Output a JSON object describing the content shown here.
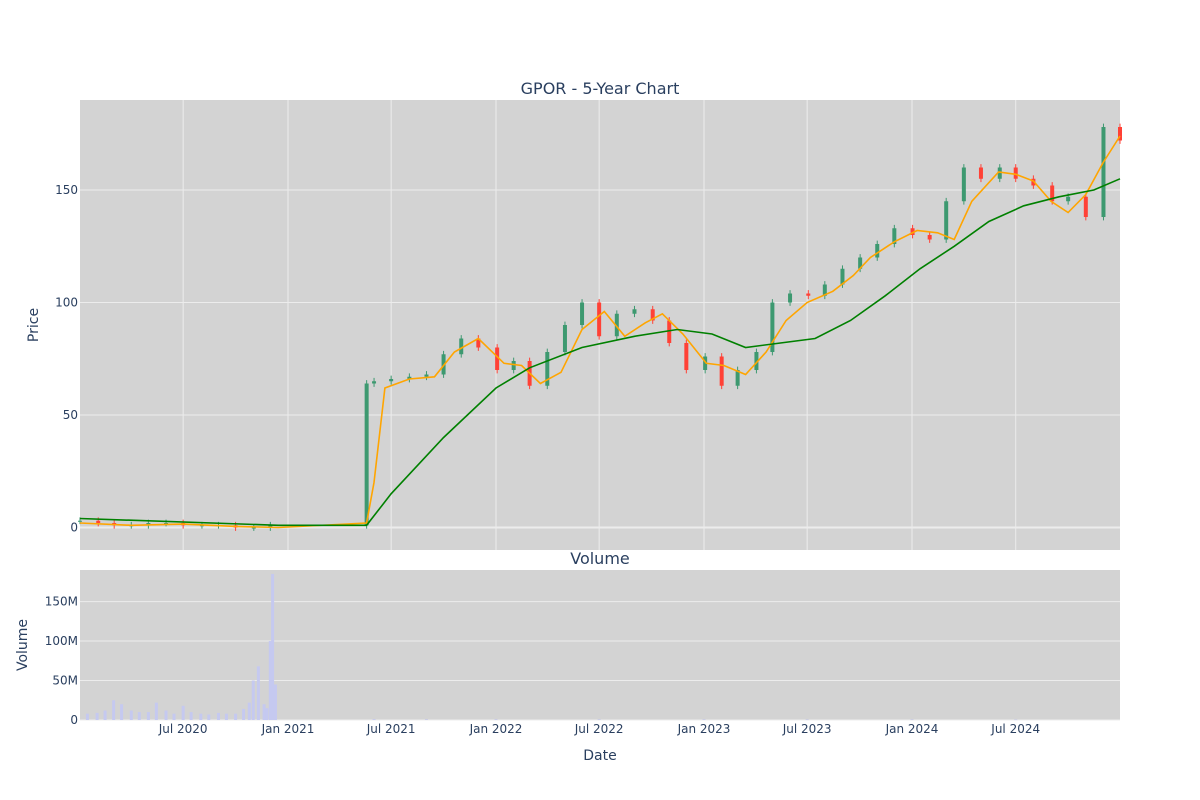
{
  "colors": {
    "plot_bg": "#d3d3d3",
    "grid": "#ececec",
    "up": "#3d9970",
    "down": "#ff4136",
    "ma_short": "#ffa500",
    "ma_long": "#008000",
    "volume": "#c5c9f0",
    "text": "#2a3f5f"
  },
  "chart_data": [
    {
      "type": "candlestick",
      "title": "GPOR - 5-Year Chart",
      "ylabel": "Price",
      "ylim": [
        -10,
        190
      ],
      "yticks": [
        0,
        50,
        100,
        150
      ],
      "x_range": [
        "2020-01-02",
        "2024-12-31"
      ],
      "x_gridlines": [
        "2020-07-01",
        "2021-01-01",
        "2021-07-01",
        "2022-01-01",
        "2022-07-01",
        "2023-01-01",
        "2023-07-01",
        "2024-01-01",
        "2024-07-01"
      ],
      "grid": true,
      "legend": false,
      "series": [
        {
          "kind": "ohlc-close",
          "x": [
            "2020-01-02",
            "2020-02-03",
            "2020-03-02",
            "2020-04-01",
            "2020-05-01",
            "2020-06-01",
            "2020-07-01",
            "2020-08-03",
            "2020-09-01",
            "2020-10-01",
            "2020-11-02",
            "2020-12-01",
            "2021-05-19",
            "2021-06-01",
            "2021-07-01",
            "2021-08-02",
            "2021-09-01",
            "2021-10-01",
            "2021-11-01",
            "2021-12-01",
            "2022-01-03",
            "2022-02-01",
            "2022-03-01",
            "2022-04-01",
            "2022-05-02",
            "2022-06-01",
            "2022-07-01",
            "2022-08-01",
            "2022-09-01",
            "2022-10-03",
            "2022-11-01",
            "2022-12-01",
            "2023-01-03",
            "2023-02-01",
            "2023-03-01",
            "2023-04-03",
            "2023-05-01",
            "2023-06-01",
            "2023-07-03",
            "2023-08-01",
            "2023-09-01",
            "2023-10-02",
            "2023-11-01",
            "2023-12-01",
            "2024-01-02",
            "2024-02-01",
            "2024-03-01",
            "2024-04-01",
            "2024-05-01",
            "2024-06-03",
            "2024-07-01",
            "2024-08-01",
            "2024-09-03",
            "2024-10-01",
            "2024-11-01",
            "2024-12-02",
            "2024-12-31"
          ],
          "y": [
            3,
            2,
            1,
            1,
            2,
            2,
            1,
            1,
            1,
            0,
            0,
            1,
            64,
            65,
            66,
            67,
            68,
            77,
            84,
            80,
            70,
            74,
            63,
            78,
            90,
            100,
            85,
            95,
            97,
            92,
            82,
            70,
            76,
            63,
            70,
            78,
            100,
            104,
            103,
            108,
            115,
            120,
            126,
            133,
            130,
            128,
            145,
            160,
            155,
            160,
            155,
            152,
            145,
            147,
            138,
            178,
            172
          ]
        },
        {
          "name": "",
          "kind": "ma-short",
          "x": [
            "2020-01-02",
            "2020-04-01",
            "2020-07-01",
            "2020-10-01",
            "2020-12-15",
            "2021-05-19",
            "2021-06-01",
            "2021-06-20",
            "2021-08-02",
            "2021-09-15",
            "2021-10-20",
            "2021-12-01",
            "2022-01-15",
            "2022-02-15",
            "2022-03-20",
            "2022-04-25",
            "2022-06-01",
            "2022-07-10",
            "2022-08-15",
            "2022-09-20",
            "2022-10-20",
            "2022-11-25",
            "2023-01-05",
            "2023-02-05",
            "2023-03-15",
            "2023-04-20",
            "2023-05-25",
            "2023-07-01",
            "2023-08-15",
            "2023-09-20",
            "2023-10-20",
            "2023-12-01",
            "2024-01-10",
            "2024-02-15",
            "2024-03-15",
            "2024-04-15",
            "2024-06-01",
            "2024-07-01",
            "2024-08-01",
            "2024-09-01",
            "2024-10-01",
            "2024-11-01",
            "2024-12-01",
            "2024-12-31"
          ],
          "y": [
            2,
            1,
            1.5,
            0.5,
            0,
            2,
            20,
            62,
            66,
            67,
            78,
            84,
            73,
            72,
            64,
            69,
            88,
            96,
            85,
            91,
            95,
            86,
            73,
            72,
            68,
            78,
            92,
            100,
            105,
            112,
            120,
            127,
            132,
            131,
            128,
            145,
            158,
            157,
            154,
            145,
            140,
            148,
            162,
            174
          ]
        },
        {
          "name": "",
          "kind": "ma-long",
          "x": [
            "2020-01-02",
            "2020-12-15",
            "2021-05-19",
            "2021-07-01",
            "2021-10-01",
            "2022-01-01",
            "2022-03-01",
            "2022-06-01",
            "2022-09-01",
            "2022-11-15",
            "2023-01-15",
            "2023-03-15",
            "2023-05-15",
            "2023-07-15",
            "2023-09-15",
            "2023-11-15",
            "2024-01-15",
            "2024-03-15",
            "2024-05-15",
            "2024-07-15",
            "2024-09-15",
            "2024-11-15",
            "2024-12-31"
          ],
          "y": [
            4,
            1,
            1,
            15,
            40,
            62,
            71,
            80,
            85,
            88,
            86,
            80,
            82,
            84,
            92,
            103,
            115,
            125,
            136,
            143,
            147,
            150,
            155
          ]
        }
      ]
    },
    {
      "type": "bar",
      "title": "Volume",
      "xlabel": "Date",
      "ylabel": "Volume",
      "ylim": [
        0,
        190000000
      ],
      "yticks": [
        0,
        50000000,
        100000000,
        150000000
      ],
      "ytick_labels": [
        "0",
        "50M",
        "100M",
        "150M"
      ],
      "xtick_dates": [
        "2020-07-01",
        "2021-01-01",
        "2021-07-01",
        "2022-01-01",
        "2022-07-01",
        "2023-01-01",
        "2023-07-01",
        "2024-01-01",
        "2024-07-01"
      ],
      "xtick_labels": [
        "Jul 2020",
        "Jan 2021",
        "Jul 2021",
        "Jan 2022",
        "Jul 2022",
        "Jan 2023",
        "Jul 2023",
        "Jan 2024",
        "Jul 2024"
      ],
      "grid": true,
      "legend": false,
      "x": [
        "2020-01-15",
        "2020-02-01",
        "2020-02-15",
        "2020-03-01",
        "2020-03-15",
        "2020-04-01",
        "2020-04-15",
        "2020-05-01",
        "2020-05-15",
        "2020-06-01",
        "2020-06-15",
        "2020-07-01",
        "2020-07-15",
        "2020-08-01",
        "2020-08-15",
        "2020-09-01",
        "2020-09-15",
        "2020-10-01",
        "2020-10-15",
        "2020-10-25",
        "2020-11-01",
        "2020-11-10",
        "2020-11-20",
        "2020-11-25",
        "2020-12-01",
        "2020-12-05",
        "2020-12-10",
        "2021-06-01",
        "2021-09-01",
        "2022-01-01",
        "2022-07-01",
        "2023-01-01",
        "2023-07-01",
        "2024-01-01",
        "2024-07-01"
      ],
      "values": [
        8000000,
        9000000,
        12000000,
        25000000,
        20000000,
        12000000,
        10000000,
        10000000,
        22000000,
        12000000,
        8000000,
        18000000,
        10000000,
        8000000,
        7000000,
        9000000,
        8000000,
        8000000,
        14000000,
        22000000,
        50000000,
        68000000,
        20000000,
        15000000,
        100000000,
        185000000,
        45000000,
        1000000,
        800000,
        800000,
        700000,
        700000,
        600000,
        600000,
        500000
      ]
    }
  ]
}
